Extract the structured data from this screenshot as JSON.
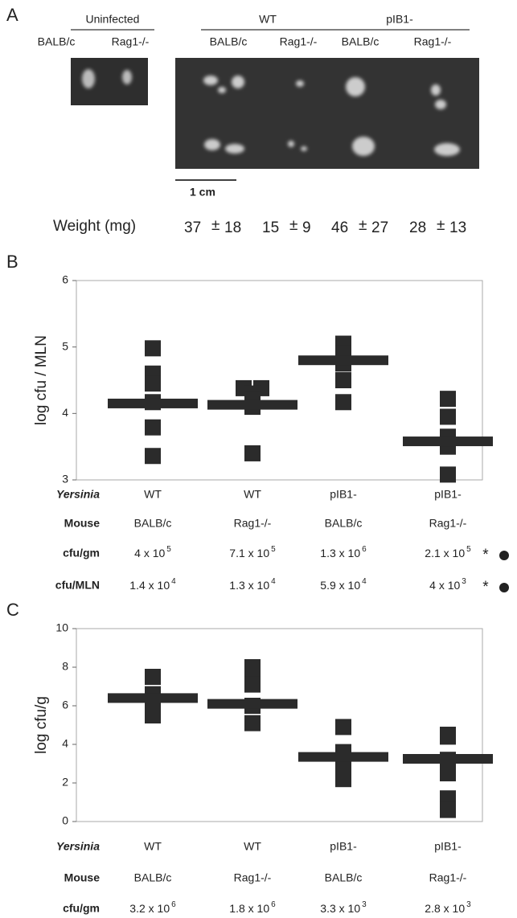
{
  "panel_a": {
    "label": "A",
    "groups": [
      {
        "name": "Uninfected",
        "strains": [
          "BALB/c",
          "Rag1-/-"
        ]
      },
      {
        "name": "WT",
        "strains": [
          "BALB/c",
          "Rag1-/-"
        ]
      },
      {
        "name": "pIB1-",
        "strains": [
          "BALB/c",
          "Rag1-/-"
        ]
      }
    ],
    "scale_bar": "1 cm",
    "weight_label": "Weight (mg)",
    "pm": "±",
    "weights": [
      {
        "mean": 37,
        "sd": 18
      },
      {
        "mean": 15,
        "sd": 9
      },
      {
        "mean": 46,
        "sd": 27
      },
      {
        "mean": 28,
        "sd": 13
      }
    ]
  },
  "chart_data": [
    {
      "type": "dot",
      "label": "B",
      "ylabel": "log cfu / MLN",
      "ylim": [
        3,
        6
      ],
      "yticks": [
        3,
        4,
        5,
        6
      ],
      "color": "#2b2b2b",
      "series": [
        {
          "values": [
            4.98,
            4.6,
            4.45,
            4.17,
            3.79,
            3.36
          ],
          "mean": 4.15
        },
        {
          "values": [
            4.38,
            4.38,
            4.3,
            4.2,
            4.1,
            3.4
          ],
          "mean": 4.13
        },
        {
          "values": [
            5.05,
            4.9,
            4.75,
            4.5,
            4.17
          ],
          "mean": 4.8
        },
        {
          "values": [
            4.22,
            3.95,
            3.65,
            3.5,
            3.08
          ],
          "mean": 3.58
        }
      ],
      "rows": [
        {
          "name": "Yersinia",
          "cells": [
            "WT",
            "WT",
            "pIB1-",
            "pIB1-"
          ]
        },
        {
          "name": "Mouse",
          "cells": [
            "BALB/c",
            "Rag1-/-",
            "BALB/c",
            "Rag1-/-"
          ]
        },
        {
          "name": "cfu/gm",
          "cells": [
            {
              "text": "4 x 10",
              "exp": 5
            },
            {
              "text": "7.1 x 10",
              "exp": 5
            },
            {
              "text": "1.3 x 10",
              "exp": 6
            },
            {
              "text": "2.1 x 10",
              "exp": 5
            }
          ],
          "mark": "*"
        },
        {
          "name": "cfu/MLN",
          "cells": [
            {
              "text": "1.4 x 10",
              "exp": 4
            },
            {
              "text": "1.3 x 10",
              "exp": 4
            },
            {
              "text": "5.9 x 10",
              "exp": 4
            },
            {
              "text": "4 x 10",
              "exp": 3
            }
          ],
          "mark": "*"
        }
      ]
    },
    {
      "type": "dot",
      "label": "C",
      "ylabel": "log cfu/g",
      "ylim": [
        0,
        10
      ],
      "yticks": [
        0,
        2,
        4,
        6,
        8,
        10
      ],
      "color": "#2b2b2b",
      "series": [
        {
          "values": [
            7.5,
            6.6,
            6.2,
            5.5
          ],
          "mean": 6.4
        },
        {
          "values": [
            8.0,
            7.45,
            7.1,
            6.0,
            5.1
          ],
          "mean": 6.1
        },
        {
          "values": [
            4.9,
            3.6,
            3.0,
            2.2
          ],
          "mean": 3.35
        },
        {
          "values": [
            4.5,
            4.4,
            3.2,
            2.5,
            1.2,
            0.6
          ],
          "mean": 3.25
        }
      ],
      "rows": [
        {
          "name": "Yersinia",
          "cells": [
            "WT",
            "WT",
            "pIB1-",
            "pIB1-"
          ]
        },
        {
          "name": "Mouse",
          "cells": [
            "BALB/c",
            "Rag1-/-",
            "BALB/c",
            "Rag1-/-"
          ]
        },
        {
          "name": "cfu/gm",
          "cells": [
            {
              "text": "3.2 x 10",
              "exp": 6
            },
            {
              "text": "1.8 x 10",
              "exp": 6
            },
            {
              "text": "3.3 x 10",
              "exp": 3
            },
            {
              "text": "2.8 x 10",
              "exp": 3
            }
          ]
        }
      ]
    }
  ]
}
